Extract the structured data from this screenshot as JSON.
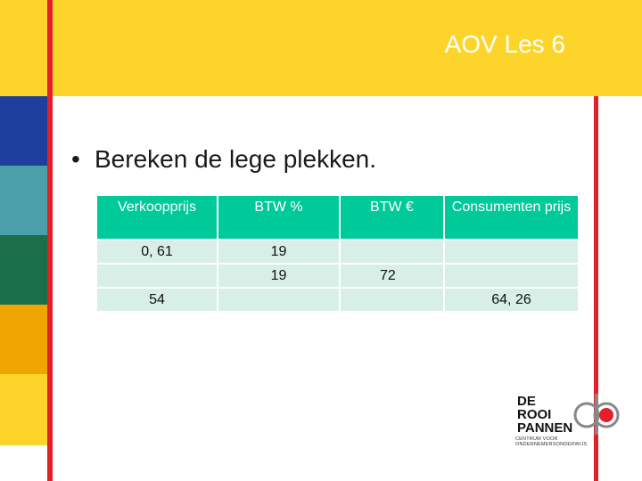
{
  "header": {
    "title": "AOV Les 6"
  },
  "content": {
    "bullet": "Bereken de lege plekken."
  },
  "table": {
    "headers": [
      "Verkoopprijs",
      "BTW %",
      "BTW €",
      "Consumenten prijs"
    ],
    "rows": [
      [
        "0, 61",
        "19",
        "",
        ""
      ],
      [
        "",
        "19",
        "72",
        ""
      ],
      [
        "54",
        "",
        "",
        "64, 26"
      ]
    ]
  },
  "logo": {
    "line1": "DE",
    "line2": "ROOI",
    "line3": "PANNEN",
    "sub": "CENTRUM VOOR ONDERNEMERSONDERWIJS"
  },
  "colors": {
    "header_yellow": "#fdd52a",
    "red_line": "#e3202a",
    "table_header": "#00c99a",
    "table_cell": "#d7efe6",
    "side_bar": [
      "#fdd52a",
      "#1f3f9e",
      "#4aa0a8",
      "#1a6e4a",
      "#f0a500",
      "#fdd52a"
    ]
  }
}
